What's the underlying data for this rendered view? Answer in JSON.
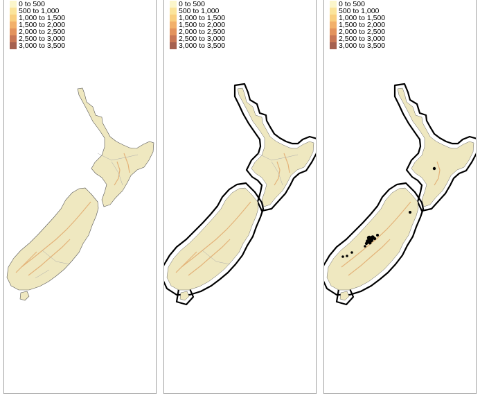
{
  "legend": {
    "classes": [
      {
        "label": "0 to 500",
        "color": "#fbf6cb"
      },
      {
        "label": "500 to 1,000",
        "color": "#fbe49a"
      },
      {
        "label": "1,000 to 1,500",
        "color": "#f9cf7f"
      },
      {
        "label": "1,500 to 2,000",
        "color": "#f2b06a"
      },
      {
        "label": "2,000 to 2,500",
        "color": "#e3935d"
      },
      {
        "label": "2,500 to 3,000",
        "color": "#c97755"
      },
      {
        "label": "3,000 to 3,500",
        "color": "#a56150"
      }
    ]
  },
  "colors": {
    "land": "#efe8c0",
    "relief": "#e0a060",
    "buffer": "#000000",
    "points": "#000000"
  }
}
